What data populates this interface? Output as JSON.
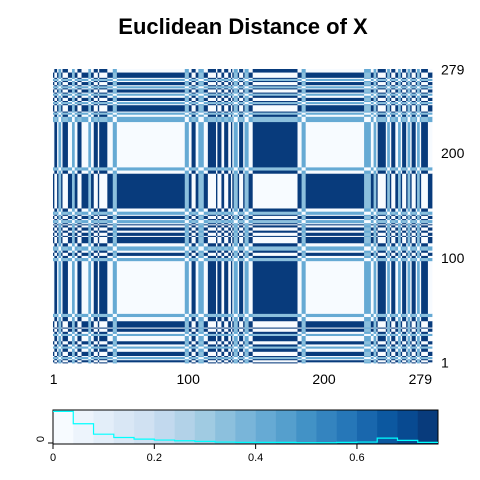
{
  "chart_data": {
    "type": "heatmap",
    "title": "Euclidean Distance of X",
    "xlabel": "",
    "ylabel": "",
    "n": 279,
    "x_ticks": [
      1,
      100,
      200,
      279
    ],
    "y_ticks": [
      1,
      100,
      200,
      279
    ],
    "far_index_ranges": [
      [
        2,
        3
      ],
      [
        8,
        11
      ],
      [
        19,
        21
      ],
      [
        31,
        33
      ],
      [
        35,
        40
      ],
      [
        103,
        105
      ],
      [
        115,
        120
      ],
      [
        122,
        124
      ],
      [
        127,
        129
      ],
      [
        132,
        132
      ],
      [
        138,
        140
      ],
      [
        148,
        180
      ],
      [
        240,
        245
      ],
      [
        250,
        252
      ],
      [
        258,
        260
      ],
      [
        265,
        267
      ],
      [
        272,
        276
      ]
    ],
    "medium_index_ranges": [
      [
        5,
        6
      ],
      [
        15,
        16
      ],
      [
        27,
        28
      ],
      [
        45,
        47
      ],
      [
        98,
        100
      ],
      [
        108,
        111
      ],
      [
        134,
        136
      ],
      [
        142,
        144
      ],
      [
        184,
        186
      ],
      [
        230,
        234
      ],
      [
        237,
        238
      ],
      [
        247,
        248
      ],
      [
        255,
        256
      ],
      [
        262,
        263
      ],
      [
        269,
        270
      ]
    ],
    "color_key": {
      "xlim": [
        0,
        0.76
      ],
      "ticks": [
        0,
        0.2,
        0.4,
        0.6
      ],
      "y_label": "0",
      "breaks": [
        0,
        0.04,
        0.08,
        0.12,
        0.16,
        0.2,
        0.24,
        0.28,
        0.32,
        0.36,
        0.4,
        0.44,
        0.48,
        0.52,
        0.56,
        0.6,
        0.64,
        0.68,
        0.72,
        0.76
      ],
      "colors": [
        "#f7fbff",
        "#edf4fc",
        "#e3eef9",
        "#d9e7f5",
        "#d0e1f2",
        "#c2d9ee",
        "#b2d2e8",
        "#a0cbe2",
        "#8cc0dd",
        "#79b5d9",
        "#66aad4",
        "#559fcd",
        "#4292c6",
        "#3484bf",
        "#2677b8",
        "#1967ad",
        "#0c58a0",
        "#084a91",
        "#083b7c"
      ],
      "histogram_counts": [
        1.0,
        0.62,
        0.3,
        0.2,
        0.15,
        0.12,
        0.1,
        0.08,
        0.06,
        0.05,
        0.05,
        0.05,
        0.04,
        0.04,
        0.05,
        0.06,
        0.18,
        0.11,
        0.05
      ],
      "histogram_color": "#00ffff"
    }
  }
}
